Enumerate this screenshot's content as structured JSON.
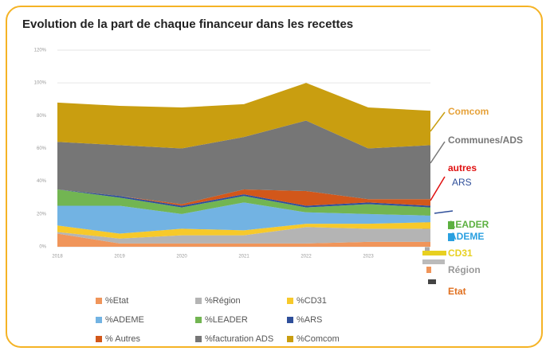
{
  "chart_data": {
    "type": "area",
    "stacked": true,
    "title": "Evolution de la part de chaque financeur dans les recettes",
    "categories": [
      "2018",
      "2019",
      "2020",
      "2021",
      "2022",
      "2023",
      null
    ],
    "series": [
      {
        "name": "%Etat",
        "color": "#f0955a",
        "values": [
          8,
          2,
          2,
          2,
          2,
          3,
          3
        ]
      },
      {
        "name": "%Région",
        "color": "#b4b4b4",
        "values": [
          1,
          3,
          5,
          5,
          10,
          8,
          8
        ]
      },
      {
        "name": "%CD31",
        "color": "#f7c92a",
        "values": [
          4,
          3,
          4,
          3,
          2,
          3,
          4
        ]
      },
      {
        "name": "%ADEME",
        "color": "#72b3e3",
        "values": [
          12,
          17,
          9,
          17,
          7,
          6,
          4
        ]
      },
      {
        "name": "%LEADER",
        "color": "#72b552",
        "values": [
          10,
          5,
          4,
          4,
          3,
          6,
          5
        ]
      },
      {
        "name": "%ARS",
        "color": "#2f4f9a",
        "values": [
          0,
          1,
          1,
          1,
          1,
          1,
          1
        ]
      },
      {
        "name": "% Autres",
        "color": "#d2571a",
        "values": [
          0,
          0,
          1,
          3,
          9,
          2,
          4
        ]
      },
      {
        "name": "%facturation ADS",
        "color": "#767676",
        "values": [
          29,
          31,
          34,
          32,
          43,
          31,
          33
        ]
      },
      {
        "name": "%Comcom",
        "color": "#c99e10",
        "values": [
          24,
          24,
          25,
          20,
          23,
          25,
          21
        ]
      }
    ],
    "ylim": [
      0,
      120
    ],
    "yticks": [
      {
        "value": 0,
        "label": "0%"
      },
      {
        "value": 20,
        "label": "20%"
      },
      {
        "value": 40,
        "label": "40%"
      },
      {
        "value": 60,
        "label": "60%"
      },
      {
        "value": 80,
        "label": "80%"
      },
      {
        "value": 100,
        "label": "100%"
      },
      {
        "value": 120,
        "label": "120%"
      }
    ],
    "grid": true,
    "legend": "bottom",
    "annotations": [
      {
        "text": "Comcom",
        "color": "#e6a23a"
      },
      {
        "text": "Communes/ADS",
        "color": "#777777"
      },
      {
        "text": "autres",
        "color": "#e01010"
      },
      {
        "text": "ARS",
        "color": "#2f4f9a"
      },
      {
        "text": "LEADER",
        "color": "#5cb040"
      },
      {
        "text": "ADEME",
        "color": "#2aa0e0"
      },
      {
        "text": "CD31",
        "color": "#e8d020"
      },
      {
        "text": "Région",
        "color": "#999999"
      },
      {
        "text": "Etat",
        "color": "#e07020"
      }
    ]
  }
}
